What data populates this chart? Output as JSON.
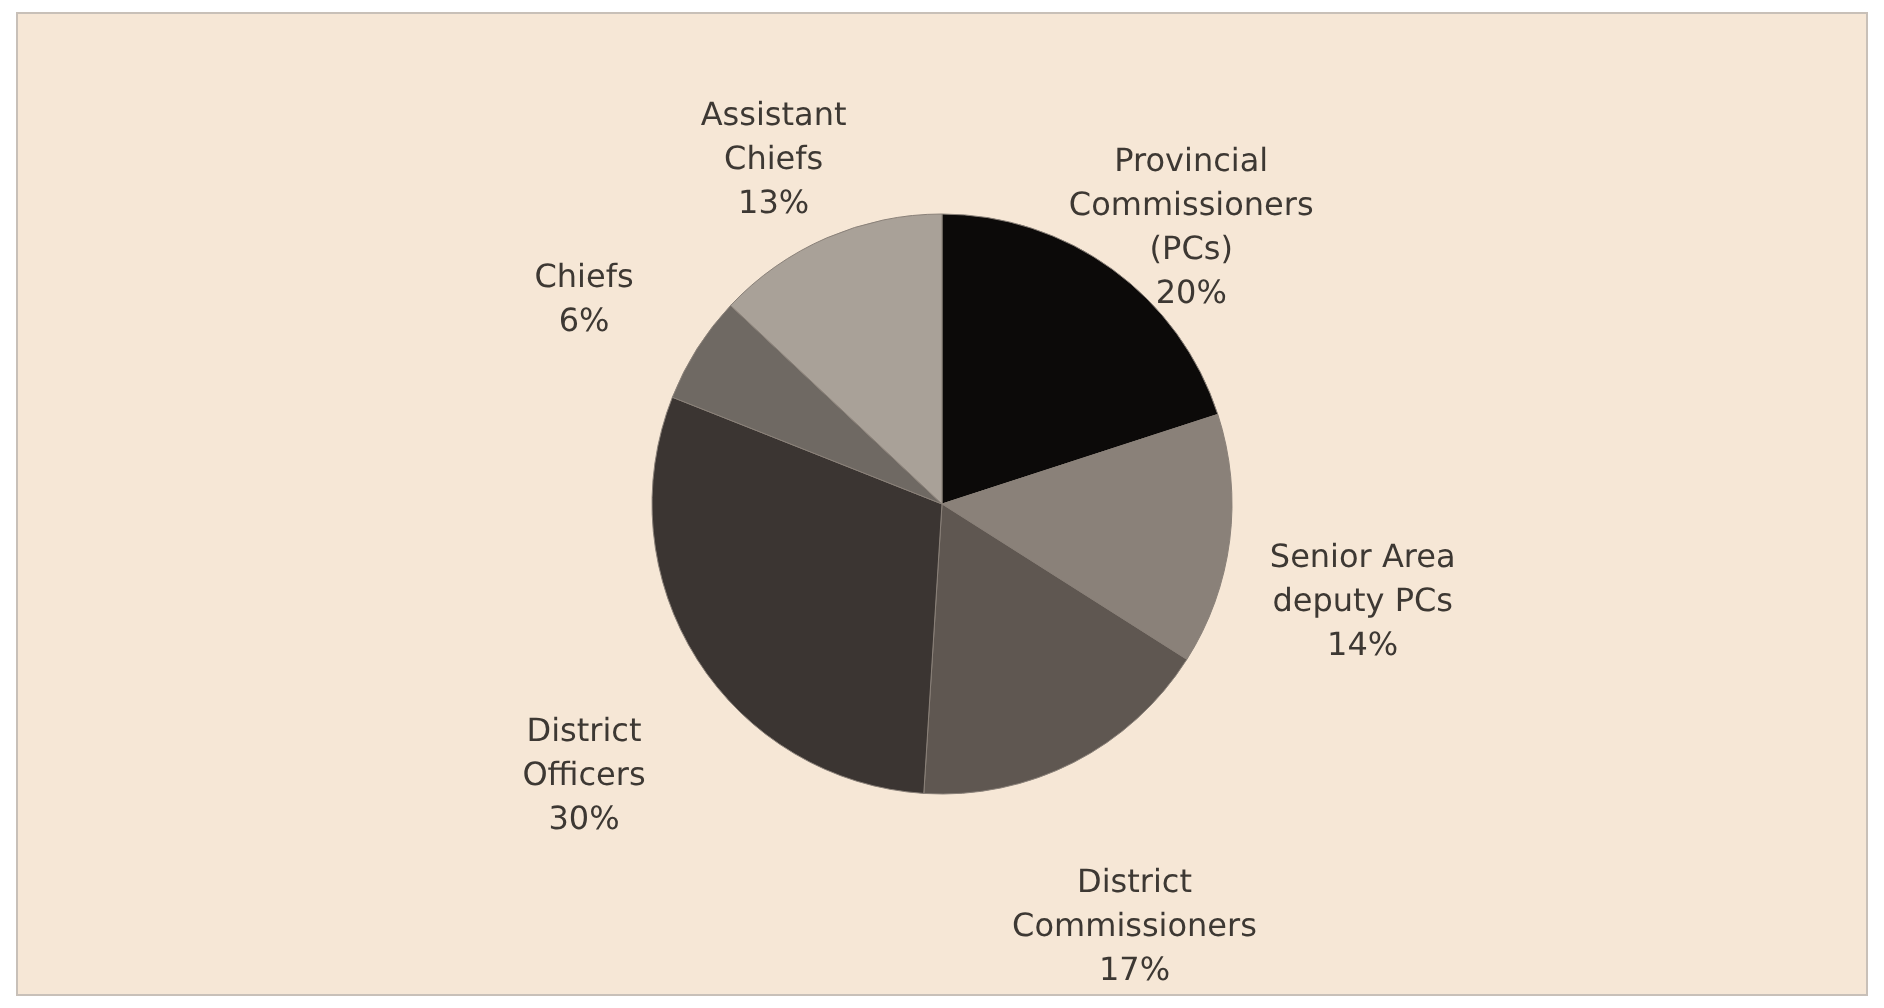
{
  "chart_data": {
    "type": "pie",
    "categories": [
      "Provincial Commissioners (PCs)",
      "Senior Area deputy PCs",
      "District Commissioners",
      "District Officers",
      "Chiefs",
      "Assistant Chiefs"
    ],
    "values": [
      20,
      14,
      17,
      30,
      6,
      13
    ],
    "value_labels": [
      "20%",
      "14%",
      "17%",
      "30%",
      "6%",
      "13%"
    ],
    "colors": [
      "#0c0a09",
      "#8a8179",
      "#5f5751",
      "#3b3532",
      "#6f6963",
      "#a9a198"
    ]
  }
}
